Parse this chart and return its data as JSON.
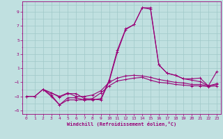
{
  "xlabel": "Windchill (Refroidissement éolien,°C)",
  "bg_color": "#c0e0e0",
  "grid_color": "#a0c8c8",
  "line_color": "#990077",
  "xlim": [
    -0.5,
    23.5
  ],
  "ylim": [
    -5.5,
    10.5
  ],
  "yticks": [
    -5,
    -3,
    -1,
    1,
    3,
    5,
    7,
    9
  ],
  "xticks": [
    0,
    1,
    2,
    3,
    4,
    5,
    6,
    7,
    8,
    9,
    10,
    11,
    12,
    13,
    14,
    15,
    16,
    17,
    18,
    19,
    20,
    21,
    22,
    23
  ],
  "line1_x": [
    0,
    1,
    2,
    3,
    4,
    5,
    6,
    7,
    8,
    9,
    10,
    11,
    12,
    13,
    14,
    15,
    16,
    17,
    18,
    19,
    20,
    21,
    22,
    23
  ],
  "line1_y": [
    -3.0,
    -3.0,
    -2.0,
    -3.0,
    -4.2,
    -3.5,
    -3.5,
    -3.5,
    -3.3,
    -2.5,
    -1.5,
    -0.8,
    -0.6,
    -0.4,
    -0.3,
    -0.7,
    -1.0,
    -1.1,
    -1.3,
    -1.4,
    -1.5,
    -1.5,
    -1.6,
    -1.5
  ],
  "line2_x": [
    0,
    1,
    2,
    3,
    4,
    5,
    6,
    7,
    8,
    9,
    10,
    11,
    12,
    13,
    14,
    15,
    16,
    17,
    18,
    19,
    20,
    21,
    22,
    23
  ],
  "line2_y": [
    -3.0,
    -3.0,
    -2.0,
    -2.5,
    -3.0,
    -2.5,
    -3.0,
    -3.0,
    -2.8,
    -2.2,
    -1.0,
    -0.4,
    -0.1,
    -0.0,
    -0.1,
    -0.3,
    -0.6,
    -0.8,
    -1.0,
    -1.1,
    -1.3,
    -1.3,
    -1.5,
    -1.3
  ],
  "line3_x": [
    2,
    3,
    4,
    5,
    6,
    7,
    8,
    9,
    10,
    11,
    12,
    13,
    14,
    15,
    16,
    17,
    18,
    19,
    20,
    21,
    22,
    23
  ],
  "line3_y": [
    -2.0,
    -2.5,
    -3.1,
    -2.6,
    -2.6,
    -3.3,
    -3.4,
    -3.5,
    -0.9,
    3.3,
    6.5,
    7.2,
    9.6,
    9.6,
    1.5,
    0.3,
    -0.0,
    -0.5,
    -0.7,
    -0.9,
    -1.5,
    -1.2
  ],
  "line4_x": [
    2,
    3,
    4,
    5,
    6,
    7,
    8,
    9,
    10,
    11,
    12,
    13,
    14,
    15,
    16,
    17,
    18,
    19,
    20,
    21,
    22,
    23
  ],
  "line4_y": [
    -2.0,
    -2.8,
    -4.2,
    -3.2,
    -3.2,
    -3.5,
    -3.5,
    -3.3,
    -0.7,
    3.6,
    6.6,
    7.2,
    9.6,
    9.4,
    1.5,
    0.3,
    0.0,
    -0.5,
    -0.5,
    -0.4,
    -1.5,
    0.5
  ]
}
